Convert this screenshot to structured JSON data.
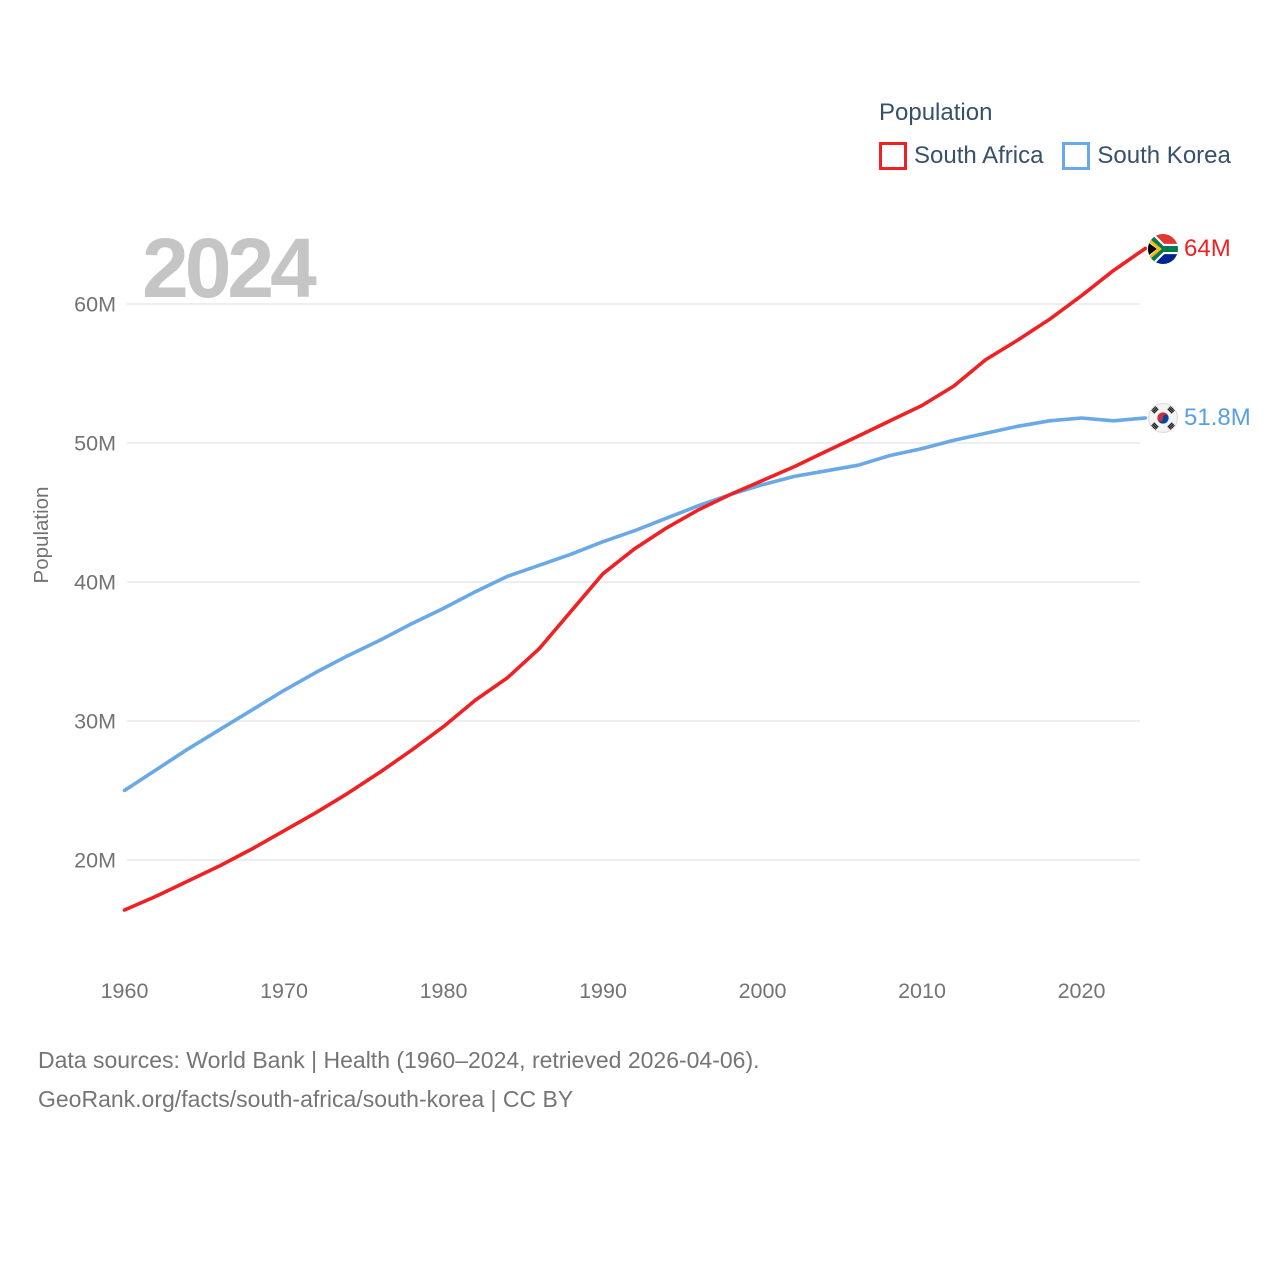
{
  "legend": {
    "title": "Population",
    "items": [
      {
        "label": "South Africa",
        "color": "#ee2124"
      },
      {
        "label": "South Korea",
        "color": "#6aa9e5"
      }
    ]
  },
  "watermark": "2024",
  "y_axis": {
    "title": "Population"
  },
  "end_labels": [
    {
      "series": "South Africa",
      "value": "64M",
      "flag": "south-africa-flag"
    },
    {
      "series": "South Korea",
      "value": "51.8M",
      "flag": "south-korea-flag"
    }
  ],
  "footer": {
    "line1": "Data sources: World Bank | Health (1960–2024, retrieved 2026-04-06).",
    "line2": "GeoRank.org/facts/south-africa/south-korea | CC BY"
  },
  "chart_data": {
    "type": "line",
    "title": "Population",
    "ylabel": "Population",
    "xlabel": "",
    "units": "millions of people",
    "grid": "horizontal",
    "legend_position": "top-right",
    "xlim": [
      1960,
      2024
    ],
    "ylim": [
      14,
      66
    ],
    "xticks": [
      1960,
      1970,
      1980,
      1990,
      2000,
      2010,
      2020
    ],
    "ytick_values": [
      20,
      30,
      40,
      50,
      60
    ],
    "ytick_labels": [
      "20M",
      "30M",
      "40M",
      "50M",
      "60M"
    ],
    "x": [
      1960,
      1962,
      1964,
      1966,
      1968,
      1970,
      1972,
      1974,
      1976,
      1978,
      1980,
      1982,
      1984,
      1986,
      1988,
      1990,
      1992,
      1994,
      1996,
      1998,
      2000,
      2002,
      2004,
      2006,
      2008,
      2010,
      2012,
      2014,
      2016,
      2018,
      2020,
      2022,
      2024
    ],
    "series": [
      {
        "name": "South Africa",
        "color": "#ee2124",
        "end_label": "64M",
        "values": [
          16.4,
          17.4,
          18.5,
          19.6,
          20.8,
          22.1,
          23.4,
          24.8,
          26.3,
          27.9,
          29.6,
          31.5,
          33.1,
          35.2,
          37.9,
          40.6,
          42.4,
          43.9,
          45.2,
          46.3,
          47.3,
          48.3,
          49.4,
          50.5,
          51.6,
          52.7,
          54.1,
          56.0,
          57.4,
          58.9,
          60.6,
          62.4,
          64.0
        ]
      },
      {
        "name": "South Korea",
        "color": "#6aa9e5",
        "end_label": "51.8M",
        "values": [
          25.0,
          26.5,
          28.0,
          29.4,
          30.8,
          32.2,
          33.5,
          34.7,
          35.8,
          37.0,
          38.1,
          39.3,
          40.4,
          41.2,
          42.0,
          42.9,
          43.7,
          44.6,
          45.5,
          46.3,
          47.0,
          47.6,
          48.0,
          48.4,
          49.1,
          49.6,
          50.2,
          50.7,
          51.2,
          51.6,
          51.8,
          51.6,
          51.8
        ]
      }
    ]
  }
}
